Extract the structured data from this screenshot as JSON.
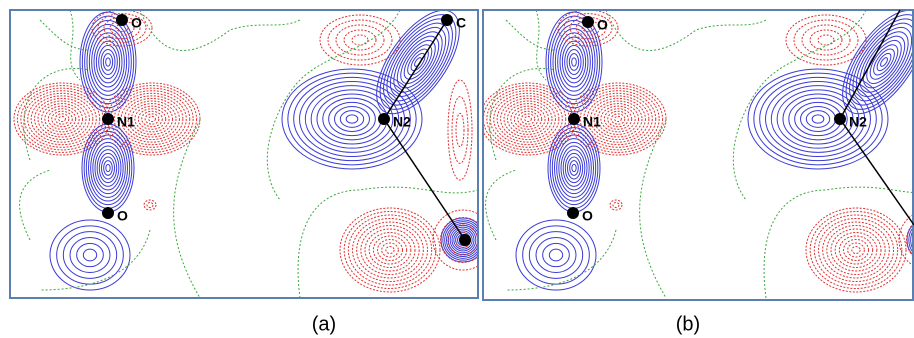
{
  "panels": [
    {
      "atoms": [
        "O",
        "N1",
        "O",
        "N2",
        "C"
      ],
      "caption": "(a)"
    },
    {
      "atoms": [
        "O",
        "N1",
        "O",
        "N2"
      ],
      "caption": "(b)"
    }
  ]
}
